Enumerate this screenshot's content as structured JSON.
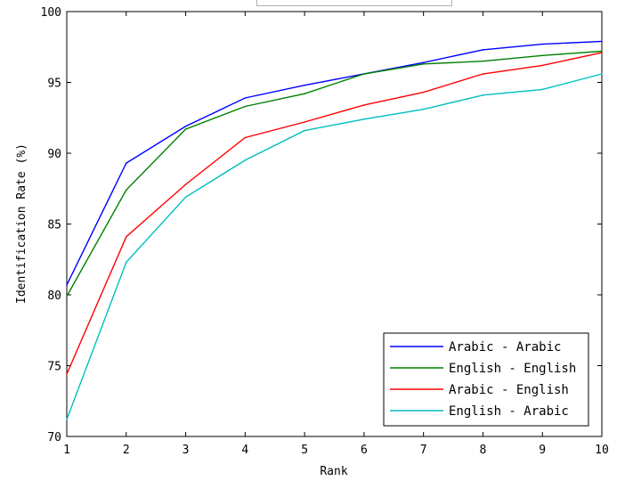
{
  "chart_data": {
    "type": "line",
    "title": "",
    "xlabel": "Rank",
    "ylabel": "Identification Rate (%)",
    "xlim": [
      1,
      10
    ],
    "ylim": [
      70,
      100
    ],
    "x": [
      1,
      2,
      3,
      4,
      5,
      6,
      7,
      8,
      9,
      10
    ],
    "x_ticks": [
      "1",
      "2",
      "3",
      "4",
      "5",
      "6",
      "7",
      "8",
      "9",
      "10"
    ],
    "y_ticks": [
      "70",
      "75",
      "80",
      "85",
      "90",
      "95",
      "100"
    ],
    "grid": false,
    "legend_position": "bottom-right",
    "series": [
      {
        "name": "Arabic - Arabic",
        "color": "#0000ff",
        "values": [
          80.7,
          89.3,
          91.9,
          93.9,
          94.8,
          95.6,
          96.4,
          97.3,
          97.7,
          97.9
        ]
      },
      {
        "name": "English - English",
        "color": "#008000",
        "values": [
          79.9,
          87.4,
          91.7,
          93.3,
          94.2,
          95.6,
          96.3,
          96.5,
          96.9,
          97.2
        ]
      },
      {
        "name": "Arabic - English",
        "color": "#ff0000",
        "values": [
          74.4,
          84.1,
          87.8,
          91.1,
          92.2,
          93.4,
          94.3,
          95.6,
          96.2,
          97.1
        ]
      },
      {
        "name": "English - Arabic",
        "color": "#00bfbf",
        "values": [
          71.2,
          82.3,
          86.9,
          89.5,
          91.6,
          92.4,
          93.1,
          94.1,
          94.5,
          95.6
        ]
      }
    ]
  }
}
